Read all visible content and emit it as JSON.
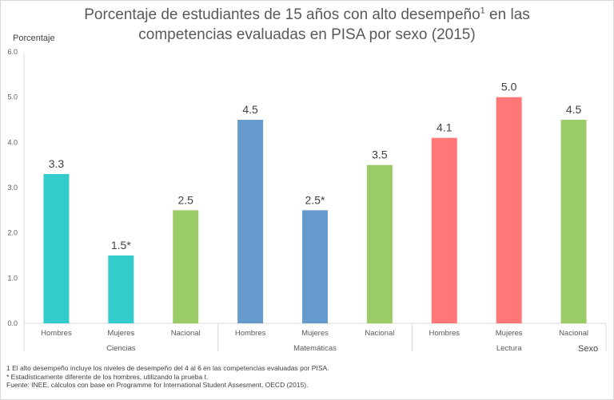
{
  "title_main": "Porcentaje de estudiantes de 15 años con alto desempeño",
  "title_sup": "1",
  "title_rest": " en las competencias evaluadas en PISA por sexo (2015)",
  "notes": [
    "1 El alto desempeño incluye los niveles de desempeño del 4 al 6 en las competencias evaluadas por PISA.",
    "* Estadísticamente diferente de los hombres, utilizando la prueba t.",
    "Fuente: INEE, cálculos con base en Programme for International Student Assesment, OECD (2015)."
  ],
  "chart_data": {
    "type": "bar",
    "title": "Porcentaje de estudiantes de 15 años con alto desempeño1 en las competencias evaluadas en PISA por sexo (2015)",
    "ylabel": "Porcentaje",
    "xlabel": "Sexo",
    "ylim": [
      0,
      6
    ],
    "yticks": [
      "0.0",
      "1.0",
      "2.0",
      "3.0",
      "4.0",
      "5.0",
      "6.0"
    ],
    "grid": false,
    "groups": [
      {
        "name": "Ciencias",
        "categories": [
          "Hombres",
          "Mujeres",
          "Nacional"
        ],
        "values": [
          3.3,
          1.5,
          2.5
        ],
        "labels": [
          "3.3",
          "1.5*",
          "2.5"
        ],
        "colors": [
          "#33cccc",
          "#33cccc",
          "#99cc66"
        ]
      },
      {
        "name": "Matemáticas",
        "categories": [
          "Hombres",
          "Mujeres",
          "Nacional"
        ],
        "values": [
          4.5,
          2.5,
          3.5
        ],
        "labels": [
          "4.5",
          "2.5*",
          "3.5"
        ],
        "colors": [
          "#6699cc",
          "#6699cc",
          "#99cc66"
        ]
      },
      {
        "name": "Lectura",
        "categories": [
          "Hombres",
          "Mujeres",
          "Nacional"
        ],
        "values": [
          4.1,
          5.0,
          4.5
        ],
        "labels": [
          "4.1",
          "5.0",
          "4.5"
        ],
        "colors": [
          "#ff7777",
          "#ff7777",
          "#99cc66"
        ]
      }
    ]
  }
}
